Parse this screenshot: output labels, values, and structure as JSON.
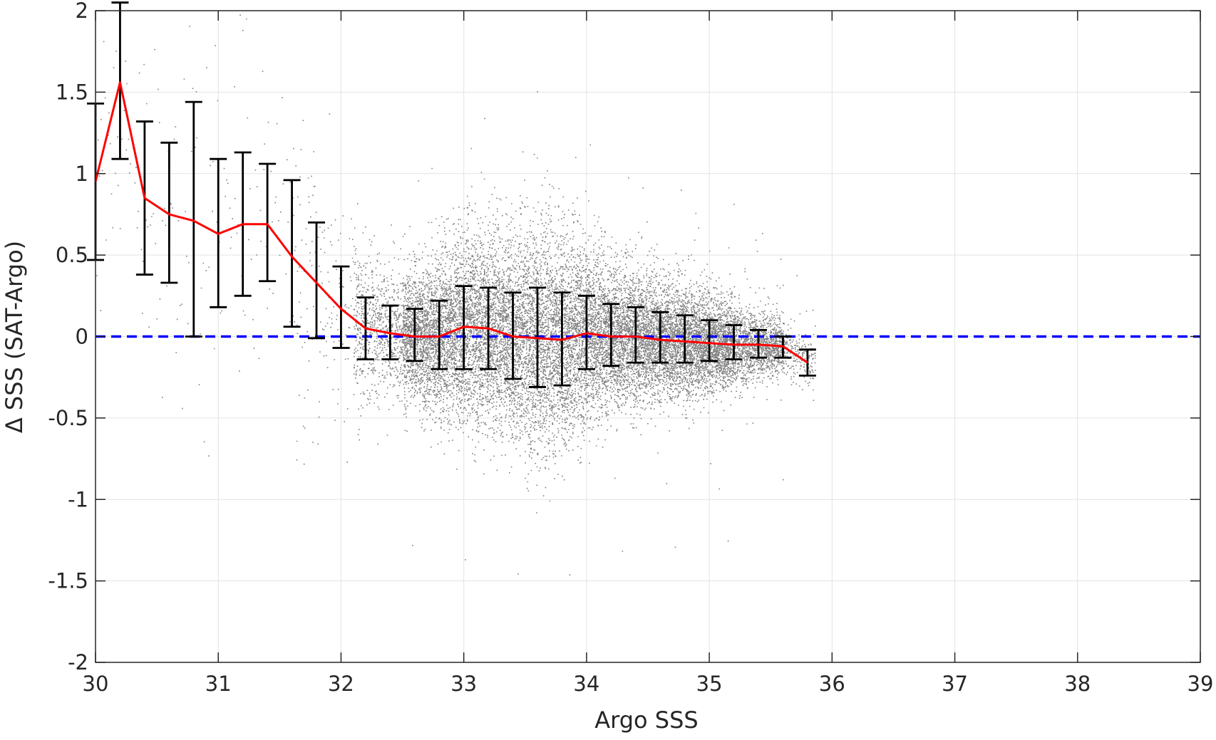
{
  "chart_data": {
    "type": "scatter",
    "title": "",
    "xlabel": "Argo SSS",
    "ylabel": "Δ SSS (SAT-Argo)",
    "xlim": [
      30,
      39
    ],
    "ylim": [
      -2,
      2
    ],
    "xticks": [
      30,
      31,
      32,
      33,
      34,
      35,
      36,
      37,
      38,
      39
    ],
    "yticks": [
      -2,
      -1.5,
      -1,
      -0.5,
      0,
      0.5,
      1,
      1.5,
      2
    ],
    "xtick_labels": [
      "30",
      "31",
      "32",
      "33",
      "34",
      "35",
      "36",
      "37",
      "38",
      "39"
    ],
    "ytick_labels": [
      "-2",
      "-1.5",
      "-1",
      "-0.5",
      "0",
      "0.5",
      "1",
      "1.5",
      "2"
    ],
    "grid": true,
    "legend": "none",
    "reference_line": {
      "y": 0,
      "style": "dashed",
      "color": "#0000ff"
    },
    "scatter_cloud": {
      "color": "#808080",
      "x_range": [
        30,
        35.9
      ],
      "y_range": [
        -1.9,
        2
      ],
      "dense_core_x_range": [
        32.1,
        35.7
      ],
      "description_points": "dense gray cloud of individual collocation points"
    },
    "series": [
      {
        "type": "binned_mean_with_errorbars",
        "color": "#ff0000",
        "errorbar_color": "#000000",
        "x": [
          30.0,
          30.2,
          30.4,
          30.6,
          30.8,
          31.0,
          31.2,
          31.4,
          31.6,
          31.8,
          32.0,
          32.2,
          32.4,
          32.6,
          32.8,
          33.0,
          33.2,
          33.4,
          33.6,
          33.8,
          34.0,
          34.2,
          34.4,
          34.6,
          34.8,
          35.0,
          35.2,
          35.4,
          35.6,
          35.8
        ],
        "mean": [
          0.95,
          1.56,
          0.85,
          0.75,
          0.71,
          0.63,
          0.69,
          0.69,
          0.49,
          0.33,
          0.17,
          0.05,
          0.02,
          0.0,
          0.0,
          0.06,
          0.05,
          0.0,
          -0.01,
          -0.02,
          0.02,
          0.0,
          0.0,
          -0.02,
          -0.03,
          -0.04,
          -0.05,
          -0.05,
          -0.06,
          -0.16
        ],
        "upper": [
          1.43,
          2.05,
          1.32,
          1.19,
          1.44,
          1.09,
          1.13,
          1.06,
          0.96,
          0.7,
          0.43,
          0.24,
          0.19,
          0.17,
          0.22,
          0.31,
          0.3,
          0.27,
          0.3,
          0.27,
          0.25,
          0.2,
          0.18,
          0.15,
          0.13,
          0.1,
          0.07,
          0.04,
          0.0,
          -0.08
        ],
        "lower": [
          0.47,
          1.09,
          0.38,
          0.33,
          0.0,
          0.18,
          0.25,
          0.34,
          0.06,
          -0.01,
          -0.07,
          -0.14,
          -0.14,
          -0.15,
          -0.2,
          -0.2,
          -0.2,
          -0.26,
          -0.31,
          -0.3,
          -0.2,
          -0.18,
          -0.16,
          -0.16,
          -0.16,
          -0.15,
          -0.14,
          -0.13,
          -0.13,
          -0.24
        ]
      }
    ]
  }
}
